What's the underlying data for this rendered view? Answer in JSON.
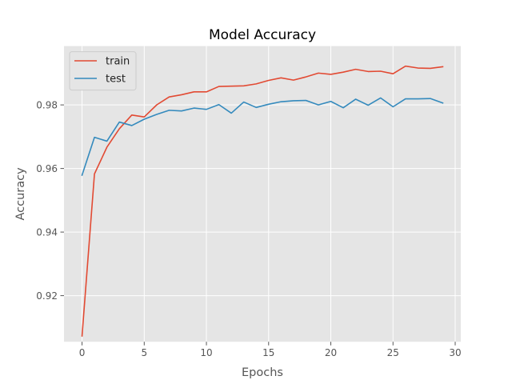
{
  "chart_data": {
    "type": "line",
    "title": "Model Accuracy",
    "xlabel": "Epochs",
    "ylabel": "Accuracy",
    "xlim": [
      -1.45,
      30.45
    ],
    "ylim": [
      0.9055,
      0.9985
    ],
    "xticks": [
      0,
      5,
      10,
      15,
      20,
      25,
      30
    ],
    "yticks": [
      0.92,
      0.94,
      0.96,
      0.98
    ],
    "ytick_labels": [
      "0.92",
      "0.94",
      "0.96",
      "0.98"
    ],
    "grid": true,
    "legend_position": "upper-left",
    "x": [
      0,
      1,
      2,
      3,
      4,
      5,
      6,
      7,
      8,
      9,
      10,
      11,
      12,
      13,
      14,
      15,
      16,
      17,
      18,
      19,
      20,
      21,
      22,
      23,
      24,
      25,
      26,
      27,
      28,
      29
    ],
    "series": [
      {
        "name": "train",
        "color": "#E24A33",
        "values": [
          0.9073,
          0.9583,
          0.9667,
          0.9725,
          0.9768,
          0.9762,
          0.98,
          0.9825,
          0.9832,
          0.9841,
          0.9841,
          0.9858,
          0.9859,
          0.986,
          0.9866,
          0.9877,
          0.9885,
          0.9878,
          0.9888,
          0.99,
          0.9896,
          0.9903,
          0.9912,
          0.9905,
          0.9906,
          0.9898,
          0.9922,
          0.9916,
          0.9915,
          0.992
        ]
      },
      {
        "name": "test",
        "color": "#348ABD",
        "values": [
          0.9579,
          0.9698,
          0.9686,
          0.9746,
          0.9735,
          0.9755,
          0.977,
          0.9783,
          0.9781,
          0.979,
          0.9786,
          0.9801,
          0.9774,
          0.9809,
          0.9792,
          0.9802,
          0.981,
          0.9813,
          0.9814,
          0.98,
          0.9811,
          0.9791,
          0.9818,
          0.9799,
          0.9822,
          0.9794,
          0.9819,
          0.9819,
          0.982,
          0.9806
        ]
      }
    ]
  }
}
